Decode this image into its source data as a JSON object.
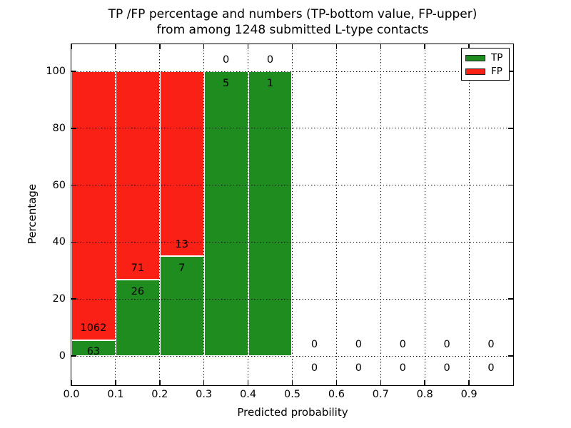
{
  "chart_data": {
    "type": "bar",
    "stacked": true,
    "title_line1": "TP /FP percentage and numbers (TP-bottom value, FP-upper)",
    "title_line2": "from among 1248 submitted L-type contacts",
    "xlabel": "Predicted probability",
    "ylabel": "Percentage",
    "xlim": [
      0.0,
      1.0
    ],
    "ylim": [
      -10.3,
      109.5
    ],
    "x_tick_labels": [
      "0.0",
      "0.1",
      "0.2",
      "0.3",
      "0.4",
      "0.5",
      "0.6",
      "0.7",
      "0.8",
      "0.9"
    ],
    "y_tick_labels": [
      "0",
      "20",
      "40",
      "60",
      "80",
      "100"
    ],
    "grid": "dotted black, drawn above bars",
    "total_contacts": 1248,
    "bins": [
      {
        "x0": 0.0,
        "x1": 0.1,
        "tp_count": 63,
        "fp_count": 1062,
        "tp_pct": 5.6,
        "fp_pct": 94.4
      },
      {
        "x0": 0.1,
        "x1": 0.2,
        "tp_count": 26,
        "fp_count": 71,
        "tp_pct": 26.8,
        "fp_pct": 73.2
      },
      {
        "x0": 0.2,
        "x1": 0.3,
        "tp_count": 7,
        "fp_count": 13,
        "tp_pct": 35.0,
        "fp_pct": 65.0
      },
      {
        "x0": 0.3,
        "x1": 0.4,
        "tp_count": 5,
        "fp_count": 0,
        "tp_pct": 100.0,
        "fp_pct": 0.0
      },
      {
        "x0": 0.4,
        "x1": 0.5,
        "tp_count": 1,
        "fp_count": 0,
        "tp_pct": 100.0,
        "fp_pct": 0.0
      },
      {
        "x0": 0.5,
        "x1": 0.6,
        "tp_count": 0,
        "fp_count": 0,
        "tp_pct": 0.0,
        "fp_pct": 0.0
      },
      {
        "x0": 0.6,
        "x1": 0.7,
        "tp_count": 0,
        "fp_count": 0,
        "tp_pct": 0.0,
        "fp_pct": 0.0
      },
      {
        "x0": 0.7,
        "x1": 0.8,
        "tp_count": 0,
        "fp_count": 0,
        "tp_pct": 0.0,
        "fp_pct": 0.0
      },
      {
        "x0": 0.8,
        "x1": 0.9,
        "tp_count": 0,
        "fp_count": 0,
        "tp_pct": 0.0,
        "fp_pct": 0.0
      },
      {
        "x0": 0.9,
        "x1": 1.0,
        "tp_count": 0,
        "fp_count": 0,
        "tp_pct": 0.0,
        "fp_pct": 0.0
      }
    ],
    "legend": {
      "position": "upper right",
      "entries": [
        {
          "label": "TP",
          "color": "#1e8c1e"
        },
        {
          "label": "FP",
          "color": "#fb2015"
        }
      ]
    }
  },
  "colors": {
    "tp_green": "#1e8c1e",
    "fp_red": "#fb2015",
    "grid": "#000000",
    "bar_edge": "#ffffff",
    "background": "#ffffff"
  }
}
